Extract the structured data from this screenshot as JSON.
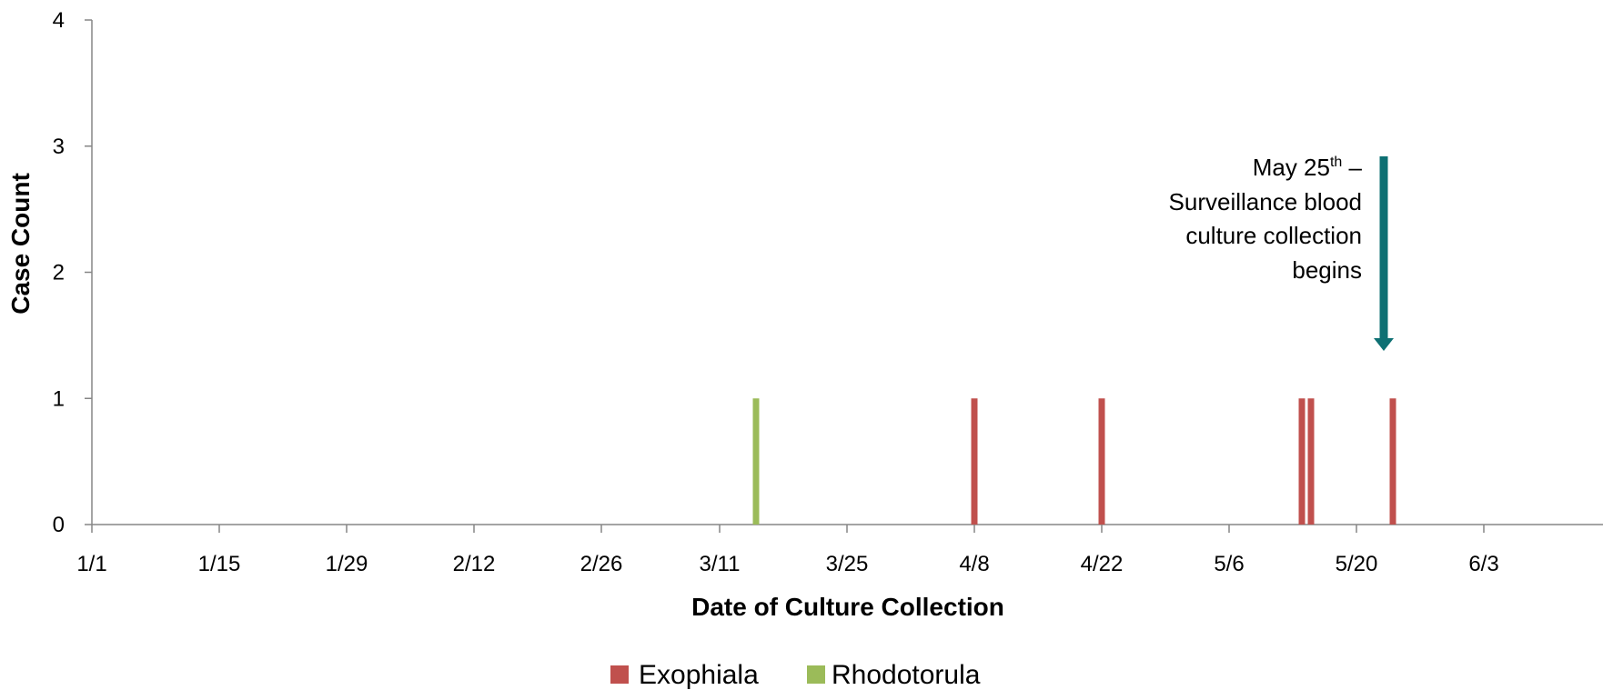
{
  "chart_data": {
    "type": "bar",
    "title": "",
    "xlabel": "Date of Culture Collection",
    "ylabel": "Case Count",
    "x_axis_type": "date",
    "xlim": [
      "1/1",
      "6/15"
    ],
    "ylim": [
      0,
      4
    ],
    "yticks": [
      0,
      1,
      2,
      3,
      4
    ],
    "xticks": [
      "1/1",
      "1/15",
      "1/29",
      "2/12",
      "2/26",
      "3/11",
      "3/25",
      "4/8",
      "4/22",
      "5/6",
      "5/20",
      "6/3"
    ],
    "grid": false,
    "legend_position": "bottom",
    "series": [
      {
        "name": "Exophiala",
        "color": "#C0504D",
        "points": [
          {
            "x": "4/8",
            "y": 1
          },
          {
            "x": "4/22",
            "y": 1
          },
          {
            "x": "5/14",
            "y": 1
          },
          {
            "x": "5/15",
            "y": 1
          },
          {
            "x": "5/24",
            "y": 1
          }
        ]
      },
      {
        "name": "Rhodotorula",
        "color": "#9BBB59",
        "points": [
          {
            "x": "3/15",
            "y": 1
          }
        ]
      }
    ],
    "annotation": {
      "date": "5/23",
      "lines": [
        "May 25",
        "Surveillance blood",
        "culture collection",
        "begins"
      ],
      "superscript": "th",
      "dash": "–",
      "arrow_color": "#0E7073"
    }
  }
}
